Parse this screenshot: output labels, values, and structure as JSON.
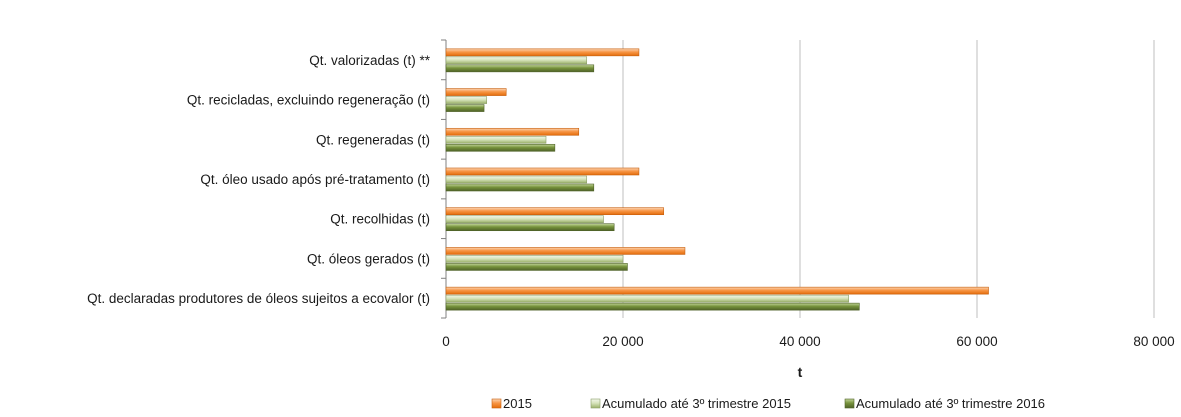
{
  "chart_data": {
    "type": "bar",
    "orientation": "horizontal",
    "categories": [
      "Qt. valorizadas (t) **",
      "Qt. recicladas, excluindo regeneração (t)",
      "Qt. regeneradas (t)",
      "Qt. óleo usado após pré-tratamento (t)",
      "Qt. recolhidas (t)",
      "Qt. óleos gerados (t)",
      "Qt. declaradas produtores de óleos sujeitos a ecovalor (t)"
    ],
    "series": [
      {
        "name": "2015",
        "color": "#F79646",
        "values": [
          21800,
          6800,
          15000,
          21800,
          24600,
          27000,
          61300
        ]
      },
      {
        "name": "Acumulado até 3º trimestre 2015",
        "color": "#D7E4BD",
        "values": [
          15900,
          4600,
          11300,
          15900,
          17800,
          20000,
          45500
        ]
      },
      {
        "name": "Acumulado até 3º trimestre 2016",
        "color": "#77933C",
        "values": [
          16700,
          4300,
          12300,
          16700,
          19000,
          20500,
          46700
        ]
      }
    ],
    "xlabel": "t",
    "xlim": [
      0,
      80000
    ],
    "xticks": [
      0,
      20000,
      40000,
      60000,
      80000
    ],
    "xtick_labels": [
      "0",
      "20 000",
      "40 000",
      "60 000",
      "80 000"
    ],
    "grid": "vertical",
    "legend_position": "bottom"
  }
}
